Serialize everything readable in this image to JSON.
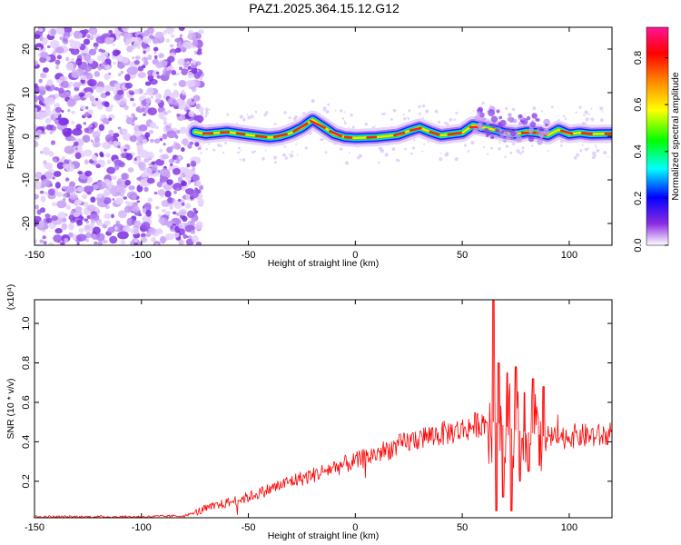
{
  "title": "PAZ1.2025.364.15.12.G12",
  "chart_data": [
    {
      "type": "heatmap",
      "xlabel": "Height of straight line (km)",
      "ylabel": "Frequency (Hz)",
      "xlim": [
        -150,
        120
      ],
      "ylim": [
        -25,
        25
      ],
      "xticks": [
        -150,
        -100,
        -50,
        0,
        50,
        100
      ],
      "yticks": [
        -20,
        -10,
        0,
        10,
        20
      ],
      "colorbar": {
        "label": "Normalized spectral amplitude",
        "range": [
          0,
          0.93
        ],
        "ticks": [
          0,
          0.2,
          0.4,
          0.6,
          0.8
        ],
        "tick_labels": [
          "0.0",
          "0.2",
          "0.4",
          "0.6",
          "0.8"
        ],
        "colors": [
          "#ffffff",
          "#8a2be2",
          "#0000ff",
          "#00ffff",
          "#00ff00",
          "#ffff00",
          "#ff8000",
          "#ff0000",
          "#ff00a0"
        ]
      },
      "noise_region_x": [
        -150,
        -75
      ],
      "ridge": {
        "x": [
          -75,
          -70,
          -60,
          -50,
          -40,
          -35,
          -30,
          -25,
          -20,
          -15,
          -10,
          -5,
          0,
          10,
          20,
          25,
          30,
          35,
          40,
          50,
          55,
          60,
          65,
          70,
          75,
          80,
          85,
          90,
          95,
          100,
          105,
          110,
          120
        ],
        "freq_hz": [
          1.0,
          0.5,
          1.0,
          0.3,
          -0.3,
          0.0,
          0.8,
          2.0,
          3.8,
          2.2,
          0.5,
          -0.2,
          -0.4,
          -0.2,
          0.3,
          1.2,
          2.0,
          1.0,
          0.2,
          0.8,
          2.5,
          2.0,
          1.5,
          0.8,
          0.5,
          1.0,
          0.8,
          0.2,
          1.5,
          0.5,
          0.8,
          0.5,
          0.6
        ]
      }
    },
    {
      "type": "line",
      "xlabel": "Height of straight line (km)",
      "ylabel": "SNR (10 * v/v)",
      "scale_label": "(x10⁴)",
      "xlim": [
        -150,
        120
      ],
      "ylim": [
        0.015,
        1.12
      ],
      "xticks": [
        -150,
        -100,
        -50,
        0,
        50,
        100
      ],
      "yticks": [
        0.2,
        0.4,
        0.6,
        0.8,
        1.0
      ],
      "ytick_labels": [
        "0.2",
        "0.4",
        "0.6",
        "0.8",
        "1.0"
      ],
      "color": "#ff0000",
      "series": [
        {
          "name": "SNR",
          "x": [
            -150,
            -120,
            -100,
            -80,
            -75,
            -70,
            -60,
            -50,
            -40,
            -30,
            -20,
            -10,
            0,
            10,
            20,
            30,
            40,
            50,
            55,
            60,
            63,
            65,
            70,
            75,
            80,
            85,
            90,
            95,
            100,
            110,
            120
          ],
          "values": [
            0.02,
            0.02,
            0.02,
            0.025,
            0.04,
            0.06,
            0.09,
            0.12,
            0.16,
            0.2,
            0.23,
            0.27,
            0.3,
            0.34,
            0.38,
            0.42,
            0.44,
            0.46,
            0.48,
            0.5,
            0.5,
            0.5,
            0.48,
            0.46,
            0.45,
            0.44,
            0.42,
            0.42,
            0.43,
            0.43,
            0.43
          ]
        }
      ],
      "spikes": [
        {
          "x": 64.5,
          "value": 1.12
        },
        {
          "x": 66,
          "value": 0.05
        },
        {
          "x": 67,
          "value": 0.8
        },
        {
          "x": 69,
          "value": 0.12
        },
        {
          "x": 71,
          "value": 0.75
        },
        {
          "x": 73,
          "value": 0.05
        },
        {
          "x": 75,
          "value": 0.78
        },
        {
          "x": 77,
          "value": 0.2
        },
        {
          "x": 79,
          "value": 0.65
        },
        {
          "x": 81,
          "value": 0.25
        },
        {
          "x": 83,
          "value": 0.72
        },
        {
          "x": 86,
          "value": 0.28
        },
        {
          "x": 88,
          "value": 0.68
        }
      ]
    }
  ]
}
